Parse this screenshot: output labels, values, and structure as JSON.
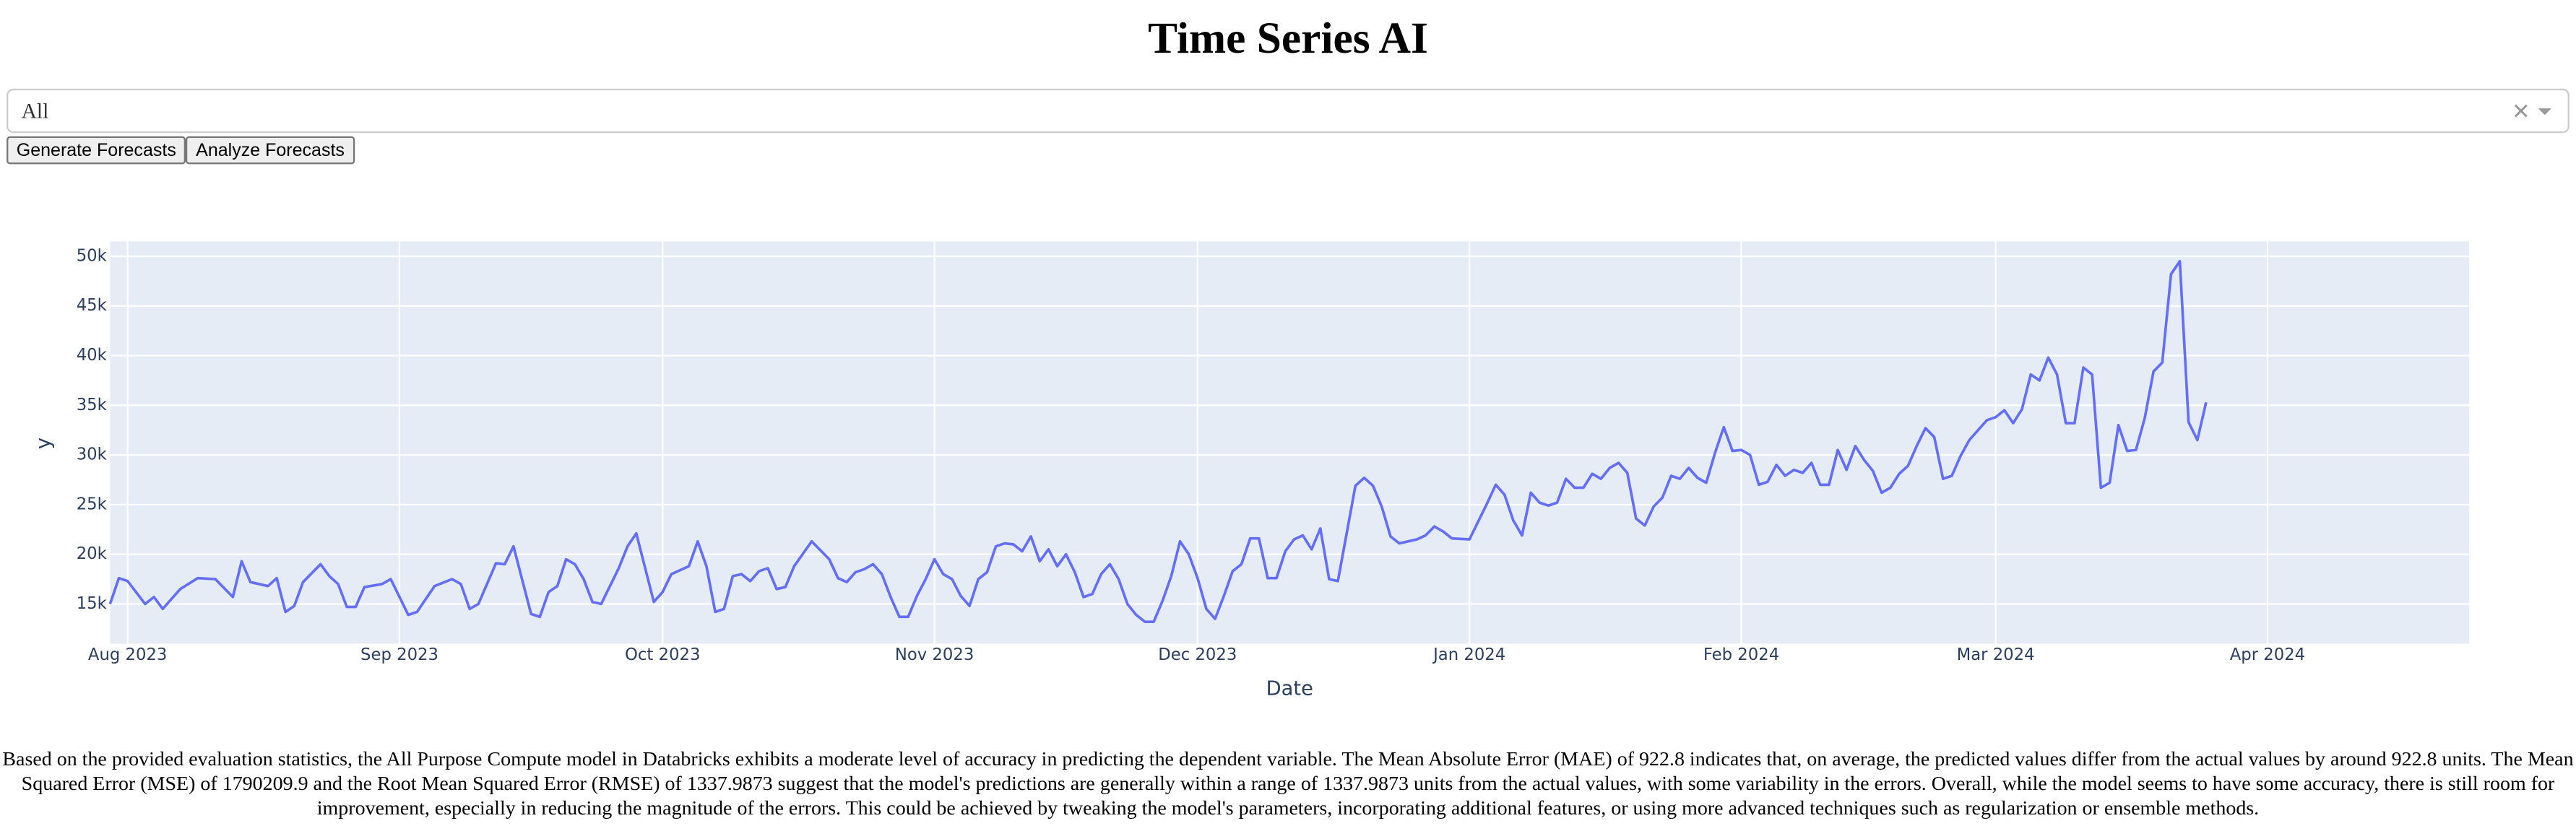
{
  "header": {
    "title": "Time Series AI"
  },
  "controls": {
    "dropdown_value": "All",
    "buttons": [
      "Generate Forecasts",
      "Analyze Forecasts"
    ]
  },
  "chart_data": {
    "type": "line",
    "x_label": "Date",
    "y_label": "y",
    "grid": true,
    "xlim": [
      "2023-07-30",
      "2024-04-24"
    ],
    "ylim": [
      11000,
      51500
    ],
    "xticks": [
      {
        "value": "2023-08-01",
        "label": "Aug 2023"
      },
      {
        "value": "2023-09-01",
        "label": "Sep 2023"
      },
      {
        "value": "2023-10-01",
        "label": "Oct 2023"
      },
      {
        "value": "2023-11-01",
        "label": "Nov 2023"
      },
      {
        "value": "2023-12-01",
        "label": "Dec 2023"
      },
      {
        "value": "2024-01-01",
        "label": "Jan 2024"
      },
      {
        "value": "2024-02-01",
        "label": "Feb 2024"
      },
      {
        "value": "2024-03-01",
        "label": "Mar 2024"
      },
      {
        "value": "2024-04-01",
        "label": "Apr 2024"
      }
    ],
    "yticks": [
      {
        "value": 15000,
        "label": "15k"
      },
      {
        "value": 20000,
        "label": "20k"
      },
      {
        "value": 25000,
        "label": "25k"
      },
      {
        "value": 30000,
        "label": "30k"
      },
      {
        "value": 35000,
        "label": "35k"
      },
      {
        "value": 40000,
        "label": "40k"
      },
      {
        "value": 45000,
        "label": "45k"
      },
      {
        "value": 50000,
        "label": "50k"
      }
    ],
    "x": [
      "2023-07-30",
      "2023-07-31",
      "2023-08-01",
      "2023-08-03",
      "2023-08-04",
      "2023-08-05",
      "2023-08-07",
      "2023-08-09",
      "2023-08-11",
      "2023-08-13",
      "2023-08-14",
      "2023-08-15",
      "2023-08-17",
      "2023-08-18",
      "2023-08-19",
      "2023-08-20",
      "2023-08-21",
      "2023-08-23",
      "2023-08-24",
      "2023-08-25",
      "2023-08-26",
      "2023-08-27",
      "2023-08-28",
      "2023-08-30",
      "2023-08-31",
      "2023-09-02",
      "2023-09-03",
      "2023-09-05",
      "2023-09-07",
      "2023-09-08",
      "2023-09-09",
      "2023-09-10",
      "2023-09-12",
      "2023-09-13",
      "2023-09-14",
      "2023-09-16",
      "2023-09-17",
      "2023-09-18",
      "2023-09-19",
      "2023-09-20",
      "2023-09-21",
      "2023-09-22",
      "2023-09-23",
      "2023-09-24",
      "2023-09-26",
      "2023-09-27",
      "2023-09-28",
      "2023-09-30",
      "2023-10-01",
      "2023-10-02",
      "2023-10-04",
      "2023-10-05",
      "2023-10-06",
      "2023-10-07",
      "2023-10-08",
      "2023-10-09",
      "2023-10-10",
      "2023-10-11",
      "2023-10-12",
      "2023-10-13",
      "2023-10-14",
      "2023-10-15",
      "2023-10-16",
      "2023-10-18",
      "2023-10-20",
      "2023-10-21",
      "2023-10-22",
      "2023-10-23",
      "2023-10-24",
      "2023-10-25",
      "2023-10-26",
      "2023-10-27",
      "2023-10-28",
      "2023-10-29",
      "2023-10-30",
      "2023-10-31",
      "2023-11-01",
      "2023-11-02",
      "2023-11-03",
      "2023-11-04",
      "2023-11-05",
      "2023-11-06",
      "2023-11-07",
      "2023-11-08",
      "2023-11-09",
      "2023-11-10",
      "2023-11-11",
      "2023-11-12",
      "2023-11-13",
      "2023-11-14",
      "2023-11-15",
      "2023-11-16",
      "2023-11-17",
      "2023-11-18",
      "2023-11-19",
      "2023-11-20",
      "2023-11-21",
      "2023-11-22",
      "2023-11-23",
      "2023-11-24",
      "2023-11-25",
      "2023-11-26",
      "2023-11-27",
      "2023-11-28",
      "2023-11-29",
      "2023-11-30",
      "2023-12-01",
      "2023-12-02",
      "2023-12-03",
      "2023-12-04",
      "2023-12-05",
      "2023-12-06",
      "2023-12-07",
      "2023-12-08",
      "2023-12-09",
      "2023-12-10",
      "2023-12-11",
      "2023-12-12",
      "2023-12-13",
      "2023-12-14",
      "2023-12-15",
      "2023-12-16",
      "2023-12-17",
      "2023-12-19",
      "2023-12-20",
      "2023-12-21",
      "2023-12-22",
      "2023-12-23",
      "2023-12-24",
      "2023-12-26",
      "2023-12-27",
      "2023-12-28",
      "2023-12-29",
      "2023-12-30",
      "2024-01-01",
      "2024-01-03",
      "2024-01-04",
      "2024-01-05",
      "2024-01-06",
      "2024-01-07",
      "2024-01-08",
      "2024-01-09",
      "2024-01-10",
      "2024-01-11",
      "2024-01-12",
      "2024-01-13",
      "2024-01-14",
      "2024-01-15",
      "2024-01-16",
      "2024-01-17",
      "2024-01-18",
      "2024-01-19",
      "2024-01-20",
      "2024-01-21",
      "2024-01-22",
      "2024-01-23",
      "2024-01-24",
      "2024-01-25",
      "2024-01-26",
      "2024-01-27",
      "2024-01-28",
      "2024-01-29",
      "2024-01-30",
      "2024-01-31",
      "2024-02-01",
      "2024-02-02",
      "2024-02-03",
      "2024-02-04",
      "2024-02-05",
      "2024-02-06",
      "2024-02-07",
      "2024-02-08",
      "2024-02-09",
      "2024-02-10",
      "2024-02-11",
      "2024-02-12",
      "2024-02-13",
      "2024-02-14",
      "2024-02-15",
      "2024-02-16",
      "2024-02-17",
      "2024-02-18",
      "2024-02-19",
      "2024-02-20",
      "2024-02-21",
      "2024-02-22",
      "2024-02-23",
      "2024-02-24",
      "2024-02-25",
      "2024-02-26",
      "2024-02-27",
      "2024-02-28",
      "2024-02-29",
      "2024-03-01",
      "2024-03-02",
      "2024-03-03",
      "2024-03-04",
      "2024-03-05",
      "2024-03-06",
      "2024-03-07",
      "2024-03-08",
      "2024-03-09",
      "2024-03-10",
      "2024-03-11",
      "2024-03-12",
      "2024-03-13",
      "2024-03-14",
      "2024-03-15",
      "2024-03-16",
      "2024-03-17",
      "2024-03-18",
      "2024-03-19",
      "2024-03-20",
      "2024-03-21",
      "2024-03-22",
      "2024-03-23",
      "2024-03-24",
      "2024-03-25"
    ],
    "series": [
      {
        "color": "#636efa",
        "values": [
          15000,
          17600,
          17300,
          15000,
          15700,
          14500,
          16500,
          17600,
          17500,
          15700,
          19300,
          17200,
          16800,
          17600,
          14200,
          14800,
          17200,
          19000,
          17800,
          17000,
          14700,
          14700,
          16700,
          17000,
          17500,
          13900,
          14200,
          16800,
          17500,
          17000,
          14500,
          15000,
          19100,
          19000,
          20800,
          14000,
          13700,
          16200,
          16800,
          19500,
          19000,
          17500,
          15200,
          15000,
          18600,
          20800,
          22100,
          15200,
          16200,
          18000,
          18800,
          21300,
          18800,
          14200,
          14500,
          17800,
          18000,
          17300,
          18300,
          18600,
          16500,
          16700,
          18800,
          21300,
          19500,
          17600,
          17200,
          18200,
          18500,
          19000,
          18000,
          15700,
          13700,
          13700,
          15800,
          17500,
          19500,
          18000,
          17500,
          15800,
          14800,
          17500,
          18200,
          20800,
          21100,
          21000,
          20300,
          21800,
          19300,
          20500,
          18800,
          20000,
          18200,
          15700,
          16000,
          18000,
          19000,
          17500,
          15000,
          13900,
          13200,
          13200,
          15300,
          17800,
          21300,
          20000,
          17600,
          14500,
          13500,
          15800,
          18300,
          19000,
          21600,
          21600,
          17600,
          17600,
          20300,
          21500,
          21900,
          20500,
          22600,
          17500,
          17300,
          26900,
          27700,
          26900,
          24800,
          21800,
          21100,
          21500,
          21900,
          22800,
          22300,
          21600,
          21500,
          25100,
          27000,
          26000,
          23400,
          21900,
          26200,
          25200,
          24900,
          25200,
          27600,
          26700,
          26700,
          28100,
          27600,
          28700,
          29200,
          28200,
          23600,
          22900,
          24800,
          25700,
          27900,
          27600,
          28700,
          27700,
          27200,
          30200,
          32800,
          30400,
          30500,
          30000,
          27000,
          27300,
          29000,
          27900,
          28500,
          28200,
          29200,
          27000,
          27000,
          30500,
          28500,
          30900,
          29500,
          28400,
          26200,
          26700,
          28100,
          28900,
          30900,
          32700,
          31800,
          27600,
          27900,
          29900,
          31500,
          32500,
          33500,
          33800,
          34500,
          33200,
          34600,
          38100,
          37500,
          39800,
          38100,
          33200,
          33200,
          38800,
          38100,
          26700,
          27200,
          33000,
          30400,
          30500,
          33700,
          38400,
          39300,
          48200,
          49500,
          33300,
          31500,
          35300
        ]
      }
    ]
  },
  "summary": "Based on the provided evaluation statistics, the All Purpose Compute model in Databricks exhibits a moderate level of accuracy in predicting the dependent variable. The Mean Absolute Error (MAE) of 922.8 indicates that, on average, the predicted values differ from the actual values by around 922.8 units. The Mean Squared Error (MSE) of 1790209.9 and the Root Mean Squared Error (RMSE) of 1337.9873 suggest that the model's predictions are generally within a range of 1337.9873 units from the actual values, with some variability in the errors. Overall, while the model seems to have some accuracy, there is still room for improvement, especially in reducing the magnitude of the errors. This could be achieved by tweaking the model's parameters, incorporating additional features, or using more advanced techniques such as regularization or ensemble methods."
}
